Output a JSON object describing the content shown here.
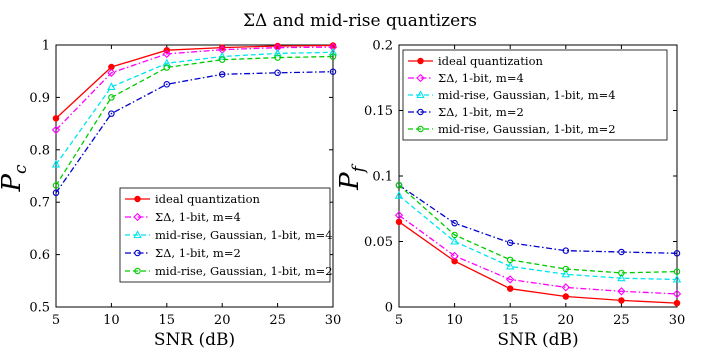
{
  "figure": {
    "title": "ΣΔ and mid-rise quantizers"
  },
  "chart_data": [
    {
      "type": "line",
      "title": "",
      "xlabel": "SNR (dB)",
      "ylabel": "P",
      "ylabel_sub": "c",
      "x": [
        5,
        10,
        15,
        20,
        25,
        30
      ],
      "xticks": [
        "5",
        "10",
        "15",
        "20",
        "25",
        "30"
      ],
      "xlim": [
        5,
        30
      ],
      "ylim": [
        0.5,
        1
      ],
      "yticks": [
        "0.5",
        "0.6",
        "0.7",
        "0.8",
        "0.9",
        "1"
      ],
      "grid": false,
      "legend_position": "bottom-right",
      "series": [
        {
          "name": "ideal quantization",
          "values": [
            0.86,
            0.958,
            0.99,
            0.995,
            0.998,
            0.999
          ],
          "color": "#ff0000",
          "dash": "solid",
          "marker": "circle"
        },
        {
          "name": "ΣΔ, 1-bit, m=4",
          "values": [
            0.838,
            0.947,
            0.983,
            0.991,
            0.995,
            0.996
          ],
          "color": "#ff00ff",
          "dash": "dashdot",
          "marker": "diamond"
        },
        {
          "name": "mid-rise, Gaussian, 1-bit, m=4",
          "values": [
            0.772,
            0.92,
            0.965,
            0.978,
            0.984,
            0.986
          ],
          "color": "#00e5ee",
          "dash": "dashed",
          "marker": "triangle"
        },
        {
          "name": "ΣΔ, 1-bit, m=2",
          "values": [
            0.718,
            0.869,
            0.925,
            0.944,
            0.947,
            0.949
          ],
          "color": "#0000cc",
          "dash": "dashdot",
          "marker": "circle"
        },
        {
          "name": "mid-rise, Gaussian, 1-bit, m=2",
          "values": [
            0.732,
            0.9,
            0.957,
            0.972,
            0.976,
            0.978
          ],
          "color": "#00cc00",
          "dash": "dashed",
          "marker": "circle"
        }
      ]
    },
    {
      "type": "line",
      "title": "",
      "xlabel": "SNR (dB)",
      "ylabel": "P",
      "ylabel_sub": "f",
      "x": [
        5,
        10,
        15,
        20,
        25,
        30
      ],
      "xticks": [
        "5",
        "10",
        "15",
        "20",
        "25",
        "30"
      ],
      "xlim": [
        5,
        30
      ],
      "ylim": [
        0,
        0.2
      ],
      "yticks": [
        "0",
        "0.05",
        "0.1",
        "0.15",
        "0.2"
      ],
      "grid": false,
      "legend_position": "top-left",
      "series": [
        {
          "name": "ideal quantization",
          "values": [
            0.065,
            0.035,
            0.014,
            0.008,
            0.005,
            0.003
          ],
          "color": "#ff0000",
          "dash": "solid",
          "marker": "circle"
        },
        {
          "name": "ΣΔ, 1-bit, m=4",
          "values": [
            0.07,
            0.039,
            0.021,
            0.015,
            0.012,
            0.01
          ],
          "color": "#ff00ff",
          "dash": "dashdot",
          "marker": "diamond"
        },
        {
          "name": "mid-rise, Gaussian, 1-bit, m=4",
          "values": [
            0.085,
            0.05,
            0.031,
            0.025,
            0.022,
            0.021
          ],
          "color": "#00e5ee",
          "dash": "dashed",
          "marker": "triangle"
        },
        {
          "name": "ΣΔ, 1-bit, m=2",
          "values": [
            0.093,
            0.064,
            0.049,
            0.043,
            0.042,
            0.041
          ],
          "color": "#0000cc",
          "dash": "dashdot",
          "marker": "circle"
        },
        {
          "name": "mid-rise, Gaussian, 1-bit, m=2",
          "values": [
            0.093,
            0.055,
            0.036,
            0.029,
            0.026,
            0.027
          ],
          "color": "#00cc00",
          "dash": "dashed",
          "marker": "circle"
        }
      ]
    }
  ]
}
